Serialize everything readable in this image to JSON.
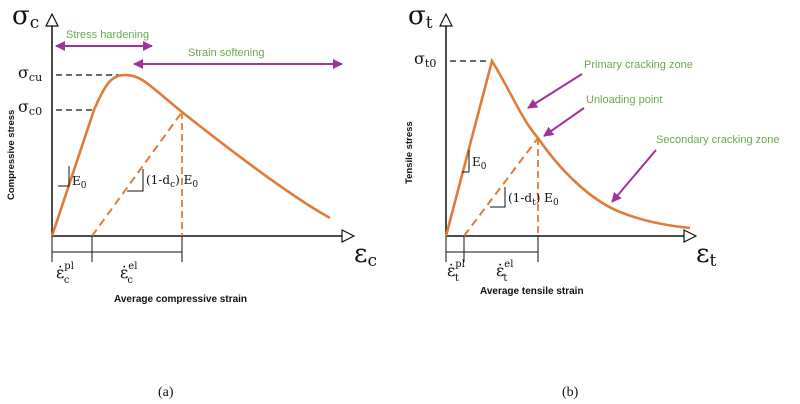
{
  "colors": {
    "curve": "#e07b39",
    "arrow": "#a0329b",
    "annotation": "#6aa84f",
    "axis": "#111111",
    "dash": "#111111"
  },
  "panel_a": {
    "y_symbol": "σc",
    "x_symbol": "εc",
    "y_axis_label": "Compressive stress",
    "x_axis_label": "Average compressive strain",
    "sigma_cu": "σcu",
    "sigma_c0": "σc0",
    "stress_hardening": "Stress hardening",
    "strain_softening": "Strain softening",
    "modulus": "E0",
    "damaged_modulus": "(1-dc) E0",
    "plastic_strain": "ε̇c pl",
    "elastic_strain": "ε̇c el",
    "caption": "(a)"
  },
  "panel_b": {
    "y_symbol": "σt",
    "x_symbol": "εt",
    "y_axis_label": "Tensile stress",
    "x_axis_label": "Average tensile strain",
    "sigma_t0": "σt0",
    "primary_zone": "Primary cracking zone",
    "unloading_point": "Unloading point",
    "secondary_zone": "Secondary cracking zone",
    "modulus": "E0",
    "damaged_modulus": "(1-dt) E0",
    "plastic_strain": "ε̇t pl",
    "elastic_strain": "ε̇t el",
    "caption": "(b)"
  }
}
